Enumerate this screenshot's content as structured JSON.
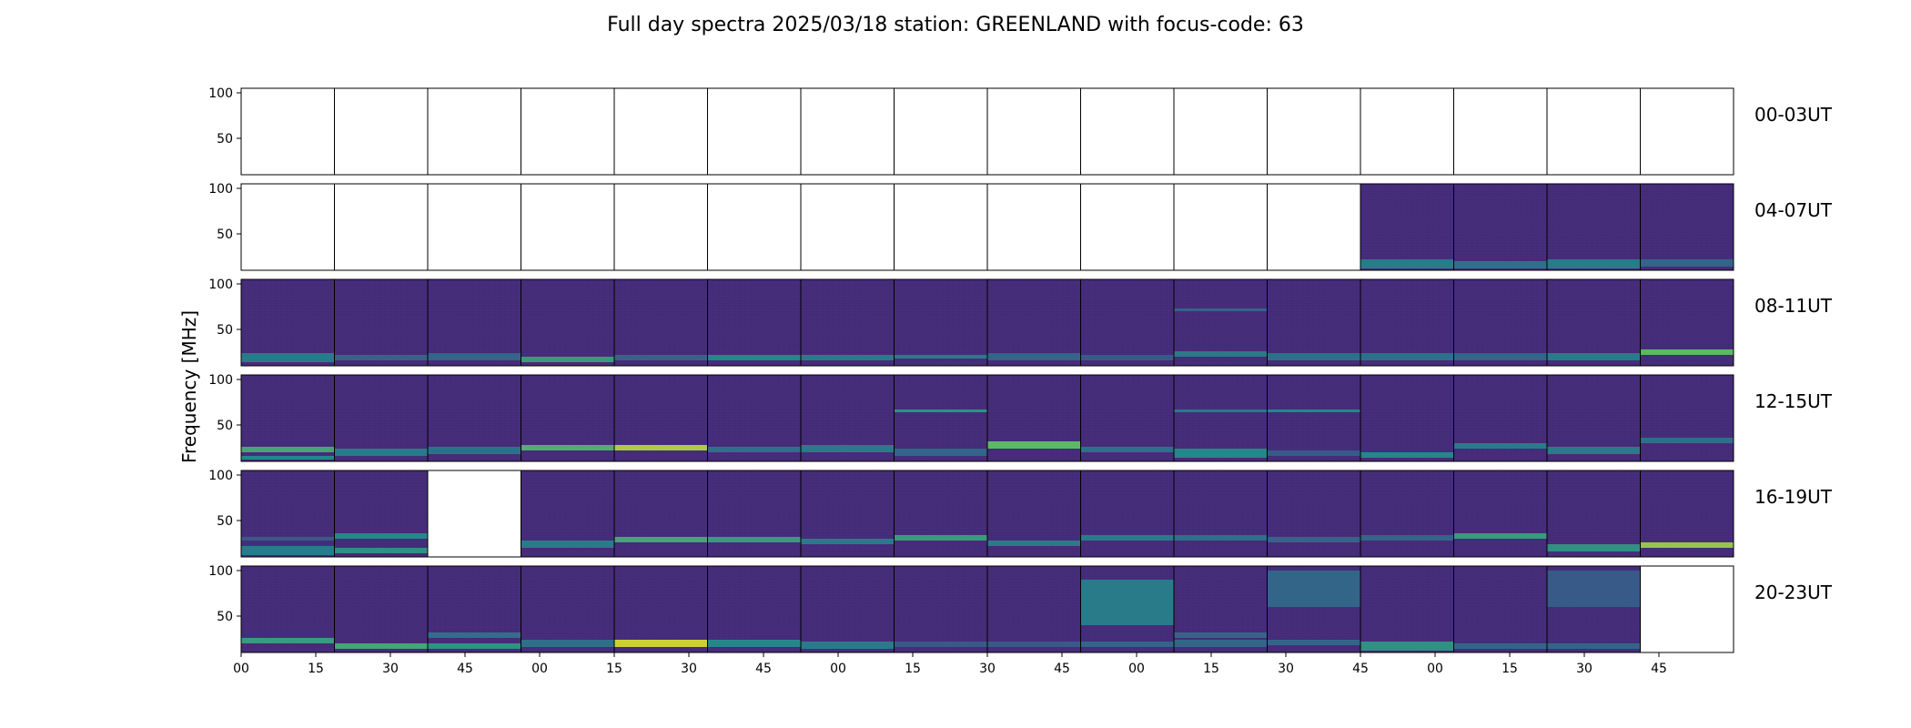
{
  "chart_data": {
    "type": "heatmap",
    "title": "Full day spectra 2025/03/18 station: GREENLAND with focus-code: 63",
    "ylabel": "Frequency [MHz]",
    "xlabel": "",
    "colormap": "viridis",
    "ylim": [
      10,
      105
    ],
    "y_ticks": [
      "100",
      "50"
    ],
    "x_ticks": [
      "00",
      "15",
      "30",
      "45",
      "00",
      "15",
      "30",
      "45",
      "00",
      "15",
      "30",
      "45",
      "00",
      "15",
      "30",
      "45",
      "00",
      "15",
      "30",
      "45"
    ],
    "panels_per_row": 16,
    "rows": [
      {
        "label": "00-03UT",
        "status": [
          0,
          0,
          0,
          0,
          0,
          0,
          0,
          0,
          0,
          0,
          0,
          0,
          0,
          0,
          0,
          0
        ]
      },
      {
        "label": "04-07UT",
        "status": [
          0,
          0,
          0,
          0,
          0,
          0,
          0,
          0,
          0,
          0,
          0,
          0,
          1,
          1,
          1,
          1
        ]
      },
      {
        "label": "08-11UT",
        "status": [
          1,
          1,
          1,
          1,
          1,
          1,
          1,
          1,
          1,
          1,
          1,
          1,
          1,
          1,
          1,
          1
        ]
      },
      {
        "label": "12-15UT",
        "status": [
          1,
          1,
          1,
          1,
          1,
          1,
          1,
          1,
          1,
          1,
          1,
          1,
          1,
          1,
          1,
          1
        ]
      },
      {
        "label": "16-19UT",
        "status": [
          1,
          1,
          0,
          1,
          1,
          1,
          1,
          1,
          1,
          1,
          1,
          1,
          1,
          1,
          1,
          1
        ]
      },
      {
        "label": "20-23UT",
        "status": [
          1,
          1,
          1,
          1,
          1,
          1,
          1,
          1,
          1,
          1,
          1,
          1,
          1,
          1,
          1,
          0
        ]
      }
    ],
    "palette": {
      "background": "#440154",
      "base": "#472d7b",
      "mid": "#3b528b",
      "teal": "#21918c",
      "green": "#5ec962",
      "yellow": "#fde725"
    },
    "intensity_bands_mhz": [
      {
        "row": 1,
        "panel": 12,
        "bands": [
          [
            12,
            22,
            0.45
          ]
        ]
      },
      {
        "row": 1,
        "panel": 13,
        "bands": [
          [
            12,
            20,
            0.4
          ]
        ]
      },
      {
        "row": 1,
        "panel": 14,
        "bands": [
          [
            12,
            22,
            0.45
          ]
        ]
      },
      {
        "row": 1,
        "panel": 15,
        "bands": [
          [
            14,
            22,
            0.35
          ]
        ]
      },
      {
        "row": 2,
        "panel": 0,
        "bands": [
          [
            14,
            24,
            0.45
          ]
        ]
      },
      {
        "row": 2,
        "panel": 1,
        "bands": [
          [
            16,
            22,
            0.35
          ]
        ]
      },
      {
        "row": 2,
        "panel": 2,
        "bands": [
          [
            16,
            24,
            0.35
          ]
        ]
      },
      {
        "row": 2,
        "panel": 3,
        "bands": [
          [
            14,
            20,
            0.6
          ]
        ]
      },
      {
        "row": 2,
        "panel": 4,
        "bands": [
          [
            16,
            22,
            0.35
          ]
        ]
      },
      {
        "row": 2,
        "panel": 5,
        "bands": [
          [
            16,
            22,
            0.5
          ]
        ]
      },
      {
        "row": 2,
        "panel": 6,
        "bands": [
          [
            16,
            22,
            0.45
          ]
        ]
      },
      {
        "row": 2,
        "panel": 7,
        "bands": [
          [
            18,
            22,
            0.45
          ]
        ]
      },
      {
        "row": 2,
        "panel": 8,
        "bands": [
          [
            16,
            24,
            0.35
          ]
        ]
      },
      {
        "row": 2,
        "panel": 9,
        "bands": [
          [
            16,
            22,
            0.3
          ]
        ]
      },
      {
        "row": 2,
        "panel": 10,
        "bands": [
          [
            20,
            26,
            0.45
          ],
          [
            70,
            73,
            0.35
          ]
        ]
      },
      {
        "row": 2,
        "panel": 11,
        "bands": [
          [
            16,
            24,
            0.4
          ]
        ]
      },
      {
        "row": 2,
        "panel": 12,
        "bands": [
          [
            16,
            24,
            0.4
          ]
        ]
      },
      {
        "row": 2,
        "panel": 13,
        "bands": [
          [
            16,
            24,
            0.35
          ]
        ]
      },
      {
        "row": 2,
        "panel": 14,
        "bands": [
          [
            16,
            24,
            0.45
          ]
        ]
      },
      {
        "row": 2,
        "panel": 15,
        "bands": [
          [
            22,
            28,
            0.75
          ]
        ]
      },
      {
        "row": 3,
        "panel": 0,
        "bands": [
          [
            20,
            26,
            0.65
          ],
          [
            12,
            16,
            0.5
          ]
        ]
      },
      {
        "row": 3,
        "panel": 1,
        "bands": [
          [
            16,
            24,
            0.45
          ]
        ]
      },
      {
        "row": 3,
        "panel": 2,
        "bands": [
          [
            18,
            26,
            0.4
          ]
        ]
      },
      {
        "row": 3,
        "panel": 3,
        "bands": [
          [
            22,
            28,
            0.7
          ]
        ]
      },
      {
        "row": 3,
        "panel": 4,
        "bands": [
          [
            22,
            28,
            0.9
          ]
        ]
      },
      {
        "row": 3,
        "panel": 5,
        "bands": [
          [
            20,
            26,
            0.4
          ]
        ]
      },
      {
        "row": 3,
        "panel": 6,
        "bands": [
          [
            20,
            28,
            0.45
          ]
        ]
      },
      {
        "row": 3,
        "panel": 7,
        "bands": [
          [
            64,
            67,
            0.55
          ],
          [
            16,
            24,
            0.35
          ]
        ]
      },
      {
        "row": 3,
        "panel": 8,
        "bands": [
          [
            24,
            32,
            0.75
          ]
        ]
      },
      {
        "row": 3,
        "panel": 9,
        "bands": [
          [
            20,
            26,
            0.4
          ]
        ]
      },
      {
        "row": 3,
        "panel": 10,
        "bands": [
          [
            14,
            24,
            0.5
          ],
          [
            64,
            67,
            0.45
          ]
        ]
      },
      {
        "row": 3,
        "panel": 11,
        "bands": [
          [
            64,
            67,
            0.5
          ],
          [
            16,
            22,
            0.3
          ]
        ]
      },
      {
        "row": 3,
        "panel": 12,
        "bands": [
          [
            14,
            20,
            0.5
          ]
        ]
      },
      {
        "row": 3,
        "panel": 13,
        "bands": [
          [
            24,
            30,
            0.45
          ]
        ]
      },
      {
        "row": 3,
        "panel": 14,
        "bands": [
          [
            18,
            26,
            0.45
          ]
        ]
      },
      {
        "row": 3,
        "panel": 15,
        "bands": [
          [
            30,
            36,
            0.4
          ]
        ]
      },
      {
        "row": 4,
        "panel": 0,
        "bands": [
          [
            12,
            22,
            0.45
          ],
          [
            28,
            32,
            0.3
          ]
        ]
      },
      {
        "row": 4,
        "panel": 1,
        "bands": [
          [
            30,
            36,
            0.5
          ],
          [
            14,
            20,
            0.55
          ]
        ]
      },
      {
        "row": 4,
        "panel": 3,
        "bands": [
          [
            20,
            28,
            0.45
          ]
        ]
      },
      {
        "row": 4,
        "panel": 4,
        "bands": [
          [
            26,
            32,
            0.65
          ]
        ]
      },
      {
        "row": 4,
        "panel": 5,
        "bands": [
          [
            26,
            32,
            0.6
          ]
        ]
      },
      {
        "row": 4,
        "panel": 6,
        "bands": [
          [
            24,
            30,
            0.45
          ]
        ]
      },
      {
        "row": 4,
        "panel": 7,
        "bands": [
          [
            28,
            34,
            0.6
          ]
        ]
      },
      {
        "row": 4,
        "panel": 8,
        "bands": [
          [
            22,
            28,
            0.45
          ]
        ]
      },
      {
        "row": 4,
        "panel": 9,
        "bands": [
          [
            28,
            34,
            0.45
          ]
        ]
      },
      {
        "row": 4,
        "panel": 10,
        "bands": [
          [
            28,
            34,
            0.4
          ]
        ]
      },
      {
        "row": 4,
        "panel": 11,
        "bands": [
          [
            26,
            32,
            0.35
          ]
        ]
      },
      {
        "row": 4,
        "panel": 12,
        "bands": [
          [
            28,
            34,
            0.35
          ]
        ]
      },
      {
        "row": 4,
        "panel": 13,
        "bands": [
          [
            30,
            36,
            0.6
          ]
        ]
      },
      {
        "row": 4,
        "panel": 14,
        "bands": [
          [
            16,
            24,
            0.55
          ]
        ]
      },
      {
        "row": 4,
        "panel": 15,
        "bands": [
          [
            20,
            26,
            0.85
          ]
        ]
      },
      {
        "row": 5,
        "panel": 0,
        "bands": [
          [
            20,
            26,
            0.6
          ]
        ]
      },
      {
        "row": 5,
        "panel": 1,
        "bands": [
          [
            14,
            20,
            0.65
          ]
        ]
      },
      {
        "row": 5,
        "panel": 2,
        "bands": [
          [
            14,
            20,
            0.55
          ],
          [
            26,
            32,
            0.4
          ]
        ]
      },
      {
        "row": 5,
        "panel": 3,
        "bands": [
          [
            16,
            24,
            0.4
          ]
        ]
      },
      {
        "row": 5,
        "panel": 4,
        "bands": [
          [
            16,
            24,
            0.95
          ]
        ]
      },
      {
        "row": 5,
        "panel": 5,
        "bands": [
          [
            16,
            24,
            0.5
          ]
        ]
      },
      {
        "row": 5,
        "panel": 6,
        "bands": [
          [
            14,
            22,
            0.45
          ]
        ]
      },
      {
        "row": 5,
        "panel": 7,
        "bands": [
          [
            16,
            22,
            0.3
          ]
        ]
      },
      {
        "row": 5,
        "panel": 8,
        "bands": [
          [
            16,
            22,
            0.3
          ]
        ]
      },
      {
        "row": 5,
        "panel": 9,
        "bands": [
          [
            40,
            90,
            0.45
          ],
          [
            16,
            22,
            0.35
          ]
        ]
      },
      {
        "row": 5,
        "panel": 10,
        "bands": [
          [
            16,
            24,
            0.35
          ],
          [
            26,
            32,
            0.35
          ]
        ]
      },
      {
        "row": 5,
        "panel": 11,
        "bands": [
          [
            60,
            100,
            0.35
          ],
          [
            18,
            24,
            0.35
          ]
        ]
      },
      {
        "row": 5,
        "panel": 12,
        "bands": [
          [
            12,
            22,
            0.55
          ]
        ]
      },
      {
        "row": 5,
        "panel": 13,
        "bands": [
          [
            14,
            20,
            0.35
          ]
        ]
      },
      {
        "row": 5,
        "panel": 14,
        "bands": [
          [
            60,
            100,
            0.3
          ],
          [
            14,
            20,
            0.35
          ]
        ]
      }
    ]
  }
}
